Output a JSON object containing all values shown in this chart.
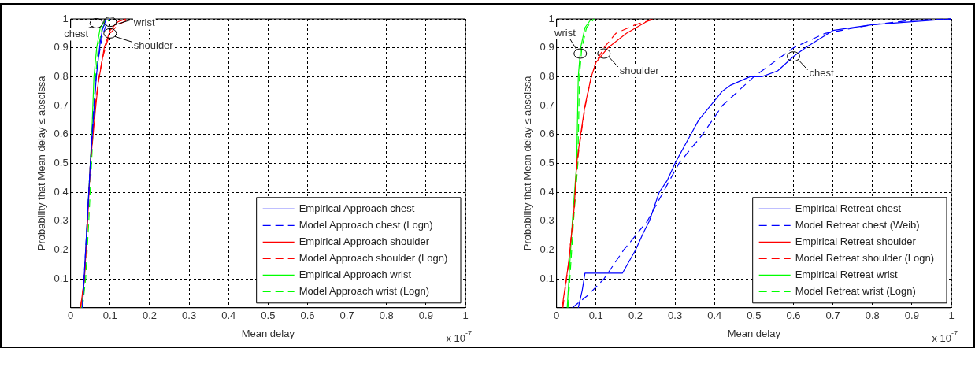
{
  "chart_data": [
    {
      "type": "line",
      "xlabel": "Mean delay",
      "ylabel": "Probability that Mean delay ≤ abscissa",
      "xlim": [
        0,
        1
      ],
      "ylim": [
        0,
        1
      ],
      "xticks": [
        0,
        0.1,
        0.2,
        0.3,
        0.4,
        0.5,
        0.6,
        0.7,
        0.8,
        0.9,
        1
      ],
      "yticks": [
        0.1,
        0.2,
        0.3,
        0.4,
        0.5,
        0.6,
        0.7,
        0.8,
        0.9,
        1
      ],
      "grid": true,
      "legend": "bottom right",
      "marker": "none",
      "annotations": [
        "x 10$^{-7}$",
        {
          "text": "chest",
          "x": 0.065,
          "y": 0.985
        },
        {
          "text": "wrist",
          "x": 0.1,
          "y": 0.99
        },
        {
          "text": "shoulder",
          "x": 0.1,
          "y": 0.95
        }
      ],
      "series": [
        {
          "name": "Empirical Approach chest",
          "color": "#0000ff",
          "line_style": "solid",
          "x": [
            0.03,
            0.04,
            0.05,
            0.055,
            0.06,
            0.065,
            0.07,
            0.075,
            0.08,
            0.09
          ],
          "values": [
            0,
            0.25,
            0.5,
            0.6,
            0.7,
            0.8,
            0.86,
            0.92,
            0.96,
            1
          ]
        },
        {
          "name": "Model Approach chest (Logn)",
          "color": "#0000ff",
          "line_style": "dashed",
          "x": [
            0.03,
            0.04,
            0.05,
            0.055,
            0.06,
            0.065,
            0.07,
            0.08,
            0.09,
            0.1
          ],
          "values": [
            0,
            0.25,
            0.5,
            0.62,
            0.72,
            0.8,
            0.86,
            0.94,
            0.98,
            1
          ]
        },
        {
          "name": "Empirical Approach shoulder",
          "color": "#ff0000",
          "line_style": "solid",
          "x": [
            0.025,
            0.035,
            0.043,
            0.05,
            0.057,
            0.064,
            0.07,
            0.078,
            0.085,
            0.1,
            0.12,
            0.14
          ],
          "values": [
            0,
            0.1,
            0.3,
            0.5,
            0.6,
            0.7,
            0.78,
            0.84,
            0.9,
            0.96,
            0.99,
            1
          ]
        },
        {
          "name": "Model Approach shoulder (Logn)",
          "color": "#ff0000",
          "line_style": "dashed",
          "x": [
            0.025,
            0.035,
            0.043,
            0.05,
            0.057,
            0.064,
            0.072,
            0.08,
            0.09,
            0.1,
            0.12,
            0.15
          ],
          "values": [
            0,
            0.1,
            0.3,
            0.5,
            0.62,
            0.72,
            0.8,
            0.86,
            0.91,
            0.95,
            0.98,
            1
          ]
        },
        {
          "name": "Empirical Approach wrist",
          "color": "#00ff00",
          "line_style": "solid",
          "x": [
            0.028,
            0.035,
            0.042,
            0.05,
            0.055,
            0.059,
            0.066,
            0.075,
            0.09
          ],
          "values": [
            0,
            0.1,
            0.3,
            0.5,
            0.65,
            0.8,
            0.9,
            0.97,
            1
          ]
        },
        {
          "name": "Model Approach wrist (Logn)",
          "color": "#00ff00",
          "line_style": "dashed",
          "x": [
            0.03,
            0.038,
            0.046,
            0.053,
            0.058,
            0.063,
            0.07,
            0.08,
            0.1
          ],
          "values": [
            0,
            0.1,
            0.3,
            0.5,
            0.65,
            0.8,
            0.9,
            0.97,
            1
          ]
        }
      ]
    },
    {
      "type": "line",
      "xlabel": "Mean delay",
      "ylabel": "Probability that Mean delay ≤ abscissa",
      "xlim": [
        0,
        1
      ],
      "ylim": [
        0,
        1
      ],
      "xticks": [
        0,
        0.1,
        0.2,
        0.3,
        0.4,
        0.5,
        0.6,
        0.7,
        0.8,
        0.9,
        1
      ],
      "yticks": [
        0.1,
        0.2,
        0.3,
        0.4,
        0.5,
        0.6,
        0.7,
        0.8,
        0.9,
        1
      ],
      "grid": true,
      "legend": "bottom right",
      "marker": "none",
      "annotations": [
        "x 10$^{-7}$",
        {
          "text": "wrist",
          "x": 0.06,
          "y": 0.88
        },
        {
          "text": "shoulder",
          "x": 0.12,
          "y": 0.88
        },
        {
          "text": "chest",
          "x": 0.6,
          "y": 0.87
        }
      ],
      "series": [
        {
          "name": "Empirical Retreat chest",
          "color": "#0000ff",
          "line_style": "solid",
          "x": [
            0.055,
            0.065,
            0.072,
            0.12,
            0.167,
            0.2,
            0.22,
            0.235,
            0.26,
            0.28,
            0.3,
            0.32,
            0.34,
            0.36,
            0.39,
            0.42,
            0.44,
            0.49,
            0.52,
            0.56,
            0.6,
            0.63,
            0.7,
            0.8,
            0.9,
            1
          ],
          "values": [
            0,
            0.06,
            0.12,
            0.12,
            0.12,
            0.2,
            0.26,
            0.3,
            0.4,
            0.44,
            0.5,
            0.55,
            0.6,
            0.65,
            0.7,
            0.75,
            0.77,
            0.8,
            0.8,
            0.82,
            0.87,
            0.9,
            0.96,
            0.98,
            0.99,
            1
          ]
        },
        {
          "name": "Model Retreat chest (Weib)",
          "color": "#0000ff",
          "line_style": "dashed",
          "x": [
            0.04,
            0.08,
            0.12,
            0.17,
            0.23,
            0.27,
            0.31,
            0.37,
            0.42,
            0.5,
            0.6,
            0.68,
            0.8,
            0.9,
            1
          ],
          "values": [
            0,
            0.044,
            0.1,
            0.2,
            0.3,
            0.4,
            0.5,
            0.6,
            0.7,
            0.8,
            0.9,
            0.95,
            0.98,
            0.995,
            1
          ]
        },
        {
          "name": "Empirical Retreat shoulder",
          "color": "#ff0000",
          "line_style": "solid",
          "x": [
            0.014,
            0.03,
            0.045,
            0.051,
            0.061,
            0.072,
            0.088,
            0.1,
            0.13,
            0.177,
            0.24
          ],
          "values": [
            0,
            0.15,
            0.35,
            0.5,
            0.6,
            0.7,
            0.8,
            0.85,
            0.9,
            0.95,
            1
          ]
        },
        {
          "name": "Model Retreat shoulder (Logn)",
          "color": "#ff0000",
          "line_style": "dashed",
          "x": [
            0.016,
            0.03,
            0.045,
            0.052,
            0.062,
            0.073,
            0.088,
            0.1,
            0.12,
            0.15,
            0.2,
            0.25
          ],
          "values": [
            0,
            0.15,
            0.35,
            0.5,
            0.6,
            0.7,
            0.8,
            0.85,
            0.9,
            0.95,
            0.98,
            1
          ]
        },
        {
          "name": "Empirical Retreat wrist",
          "color": "#00ff00",
          "line_style": "solid",
          "x": [
            0.027,
            0.04,
            0.051,
            0.055,
            0.061,
            0.072,
            0.088
          ],
          "values": [
            0,
            0.3,
            0.5,
            0.8,
            0.9,
            0.97,
            1
          ]
        },
        {
          "name": "Model Retreat wrist (Logn)",
          "color": "#00ff00",
          "line_style": "dashed",
          "x": [
            0.029,
            0.043,
            0.054,
            0.058,
            0.064,
            0.076,
            0.095
          ],
          "values": [
            0,
            0.3,
            0.5,
            0.8,
            0.9,
            0.97,
            1
          ]
        }
      ]
    }
  ]
}
